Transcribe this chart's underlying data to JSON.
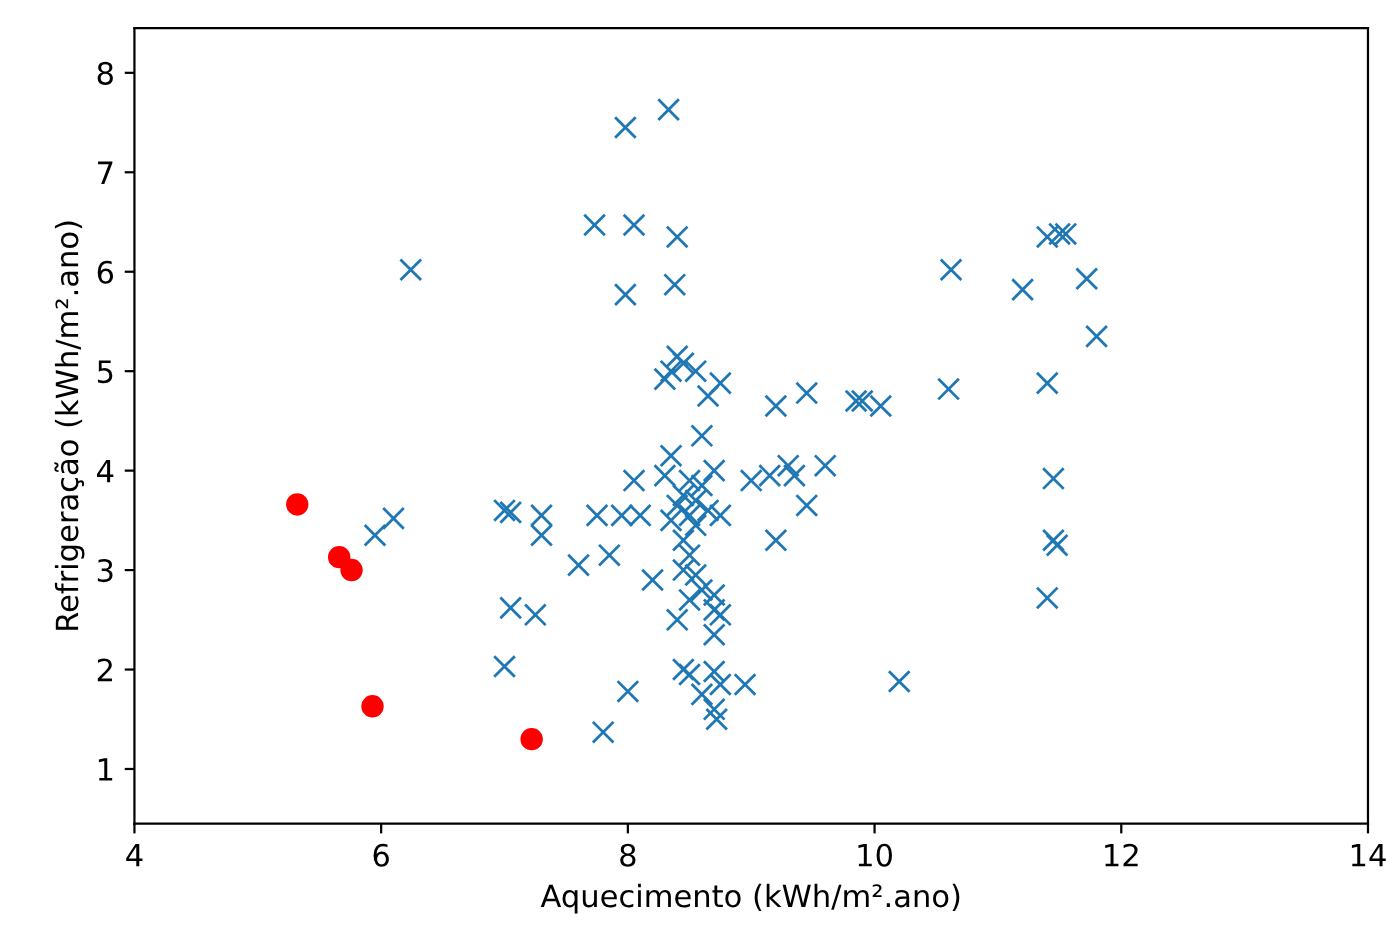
{
  "chart_data": {
    "type": "scatter",
    "xlabel": "Aquecimento (kWh/m².ano)",
    "ylabel": "Refrigeração (kWh/m².ano)",
    "xlim": [
      4,
      14
    ],
    "ylim": [
      0.45,
      8.45
    ],
    "xticks": [
      4,
      6,
      8,
      10,
      12,
      14
    ],
    "yticks": [
      1,
      2,
      3,
      4,
      5,
      6,
      7,
      8
    ],
    "grid": false,
    "legend": false,
    "series": [
      {
        "color": "#1f77b4",
        "marker": "cross",
        "x": [
          6.24,
          7.98,
          8.33,
          7.73,
          8.05,
          8.4,
          7.98,
          8.38,
          8.4,
          8.45,
          8.35,
          8.3,
          8.55,
          8.65,
          8.75,
          9.2,
          9.45,
          9.85,
          9.9,
          10.05,
          10.6,
          10.62,
          11.2,
          11.4,
          11.5,
          11.55,
          11.72,
          11.8,
          11.4,
          11.45,
          11.45,
          11.48,
          11.4,
          10.2,
          8.6,
          8.35,
          8.3,
          8.7,
          8.5,
          8.6,
          8.45,
          8.55,
          8.4,
          8.65,
          8.5,
          8.75,
          8.35,
          8.55,
          8.45,
          8.5,
          8.05,
          9.0,
          9.15,
          9.3,
          9.35,
          9.6,
          9.45,
          9.2,
          7.0,
          7.05,
          7.3,
          7.3,
          7.75,
          7.95,
          7.6,
          7.85,
          8.1,
          8.2,
          8.45,
          8.55,
          8.6,
          8.7,
          8.7,
          8.5,
          8.4,
          8.7,
          8.75,
          7.05,
          7.25,
          7.0,
          8.0,
          7.8,
          8.45,
          8.6,
          8.7,
          8.75,
          8.7,
          8.72,
          8.95,
          8.5,
          5.95,
          6.1
        ],
        "values": [
          6.02,
          7.45,
          7.63,
          6.47,
          6.47,
          6.35,
          5.77,
          5.87,
          5.15,
          5.08,
          5.0,
          4.92,
          5.0,
          4.75,
          4.88,
          4.65,
          4.78,
          4.7,
          4.7,
          4.65,
          4.82,
          6.02,
          5.82,
          6.35,
          6.38,
          6.38,
          5.93,
          5.35,
          4.88,
          3.92,
          3.3,
          3.25,
          2.72,
          1.88,
          4.35,
          4.15,
          3.95,
          4.0,
          3.9,
          3.85,
          3.75,
          3.7,
          3.65,
          3.6,
          3.55,
          3.55,
          3.5,
          3.45,
          3.3,
          3.15,
          3.9,
          3.9,
          3.95,
          4.05,
          3.95,
          4.05,
          3.65,
          3.3,
          3.6,
          3.58,
          3.55,
          3.35,
          3.55,
          3.55,
          3.05,
          3.15,
          3.55,
          2.9,
          3.0,
          2.95,
          2.8,
          2.75,
          2.6,
          2.7,
          2.5,
          2.35,
          2.55,
          2.62,
          2.55,
          2.03,
          1.78,
          1.37,
          2.0,
          1.75,
          1.98,
          1.85,
          1.6,
          1.5,
          1.85,
          1.95,
          3.35,
          3.52
        ]
      },
      {
        "color": "#ff0000",
        "marker": "circle",
        "x": [
          5.32,
          5.66,
          5.76,
          5.93,
          7.22
        ],
        "values": [
          3.66,
          3.13,
          3.0,
          1.63,
          1.3
        ]
      }
    ]
  }
}
